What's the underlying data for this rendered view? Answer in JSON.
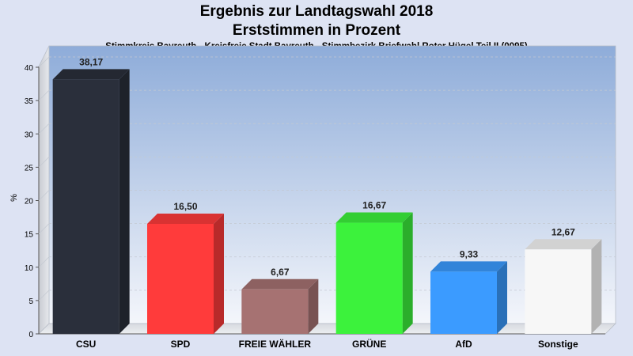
{
  "chart_data": {
    "type": "bar",
    "title": "Ergebnis zur Landtagswahl 2018",
    "subtitle": "Erststimmen in Prozent",
    "subtitle2": "Stimmkreis Bayreuth - Kreisfreie Stadt Bayreuth - Stimmbezirk Briefwahl Roter Hügel Teil II (0095)",
    "ylabel": "%",
    "xlabel": "",
    "ylim": [
      0,
      40
    ],
    "yticks": [
      "0",
      "5",
      "10",
      "15",
      "20",
      "25",
      "30",
      "35",
      "40"
    ],
    "grid": true,
    "categories": [
      "CSU",
      "SPD",
      "FREIE WÄHLER",
      "GRÜNE",
      "AfD",
      "Sonstige"
    ],
    "values": [
      38.17,
      16.5,
      6.67,
      16.67,
      9.33,
      12.67
    ],
    "value_labels": [
      "38,17",
      "16,50",
      "6,67",
      "16,67",
      "9,33",
      "12,67"
    ],
    "colors": [
      "#2a2f3b",
      "#ff3b3b",
      "#a67272",
      "#3cf23c",
      "#3b9bff",
      "#f7f7f7"
    ]
  }
}
